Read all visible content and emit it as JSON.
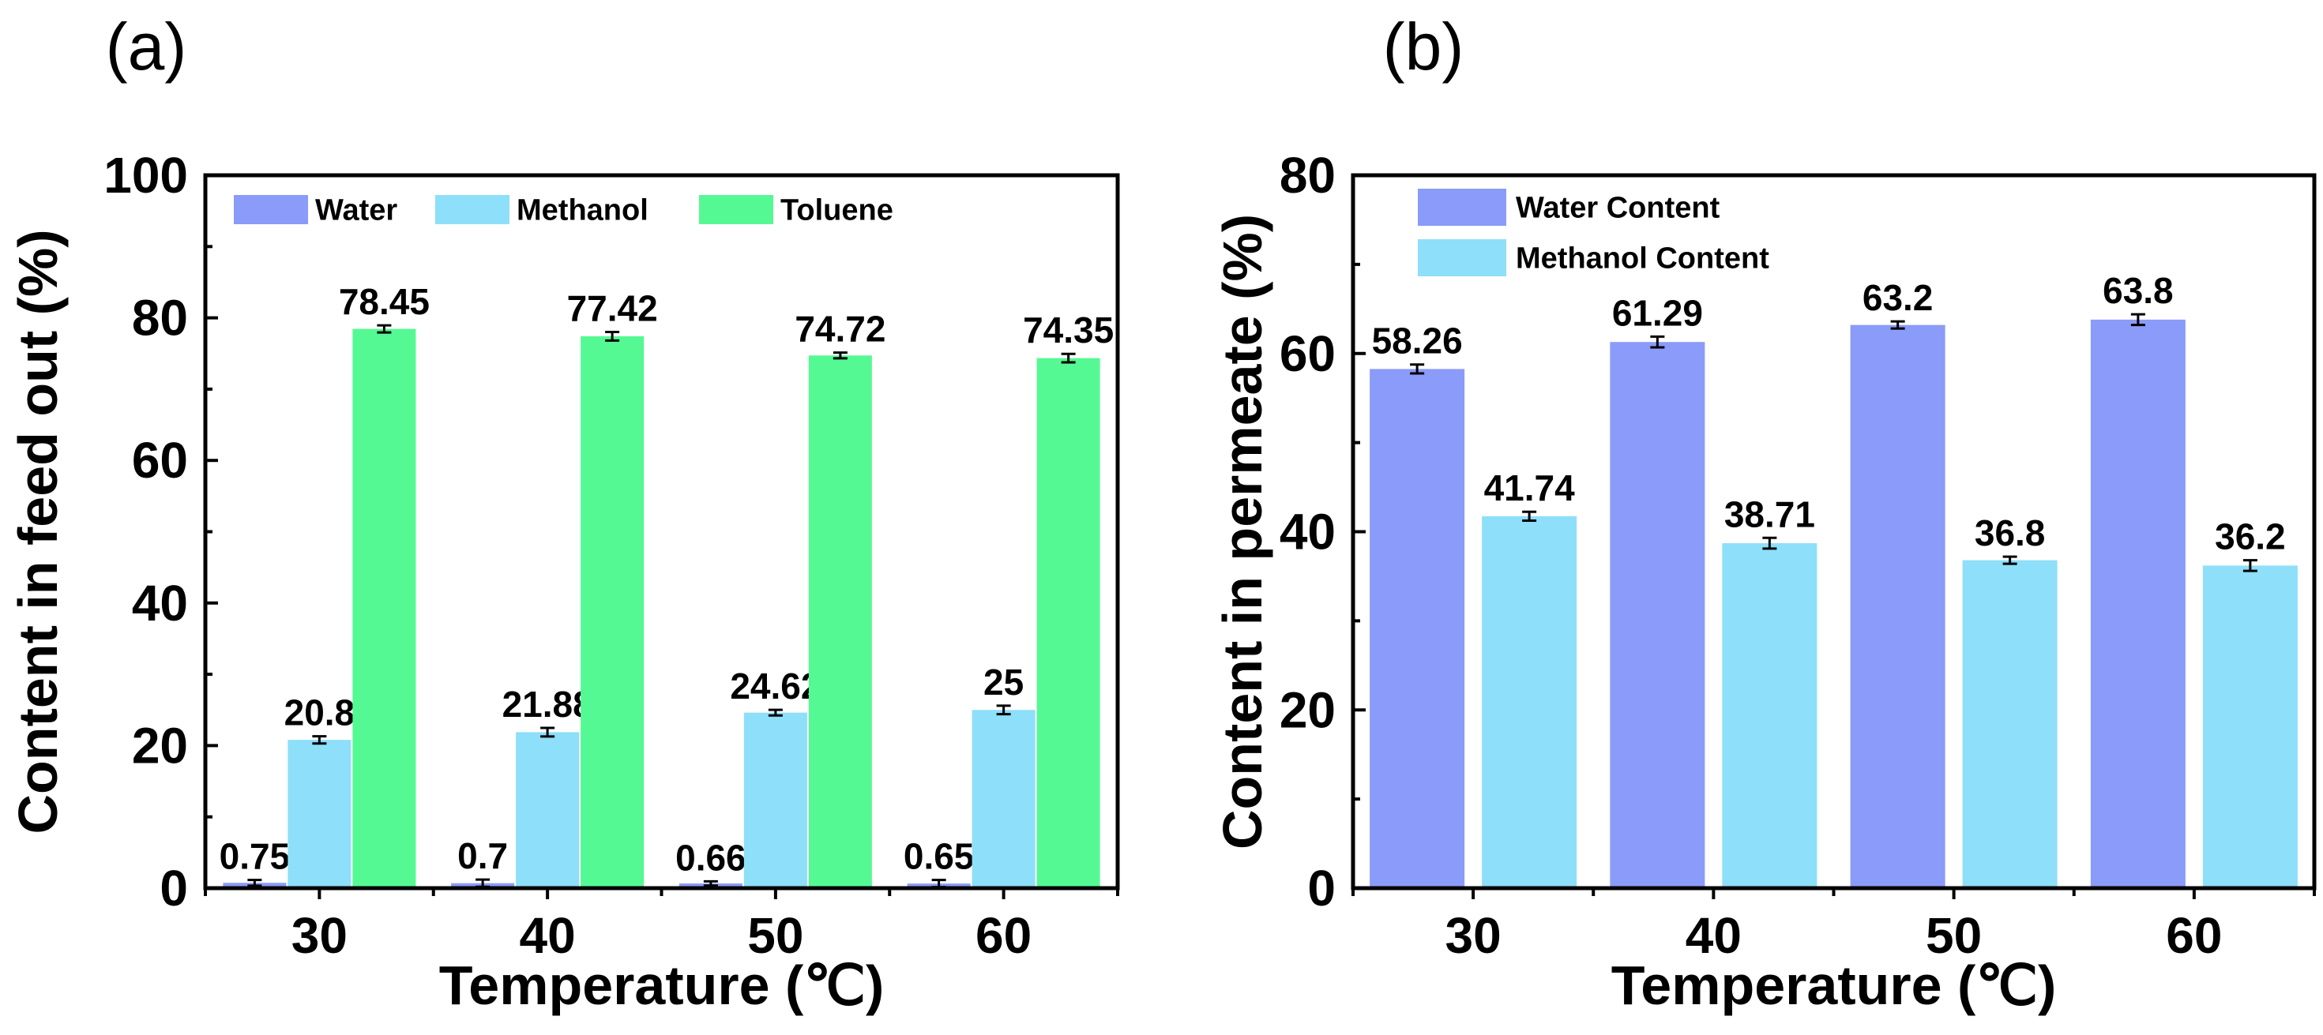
{
  "chart_data": [
    {
      "type": "bar",
      "panel_label": "(a)",
      "title": "",
      "xlabel": "Temperature (℃)",
      "ylabel": "Content in feed out (%)",
      "categories": [
        "30",
        "40",
        "50",
        "60"
      ],
      "ylim": [
        0,
        100
      ],
      "yticks": [
        0,
        20,
        40,
        60,
        80,
        100
      ],
      "legend_position": "top-left",
      "series": [
        {
          "name": "Water",
          "color": "#8b9bf9",
          "values": [
            0.75,
            0.7,
            0.66,
            0.65
          ],
          "errors": [
            0.4,
            0.5,
            0.3,
            0.5
          ],
          "labels": [
            "0.75",
            "0.7",
            "0.66",
            "0.65"
          ]
        },
        {
          "name": "Methanol",
          "color": "#8edff9",
          "values": [
            20.8,
            21.88,
            24.62,
            25
          ],
          "errors": [
            0.5,
            0.6,
            0.4,
            0.6
          ],
          "labels": [
            "20.8",
            "21.88",
            "24.62",
            "25"
          ]
        },
        {
          "name": "Toluene",
          "color": "#55f993",
          "values": [
            78.45,
            77.42,
            74.72,
            74.35
          ],
          "errors": [
            0.5,
            0.6,
            0.4,
            0.6
          ],
          "labels": [
            "78.45",
            "77.42",
            "74.72",
            "74.35"
          ]
        }
      ]
    },
    {
      "type": "bar",
      "panel_label": "(b)",
      "title": "",
      "xlabel": "Temperature (℃)",
      "ylabel": "Content in permeate (%)",
      "categories": [
        "30",
        "40",
        "50",
        "60"
      ],
      "ylim": [
        0,
        80
      ],
      "yticks": [
        0,
        20,
        40,
        60,
        80
      ],
      "legend_position": "top-left",
      "series": [
        {
          "name": "Water Content",
          "color": "#8b9bf9",
          "values": [
            58.26,
            61.29,
            63.2,
            63.8
          ],
          "errors": [
            0.5,
            0.6,
            0.4,
            0.6
          ],
          "labels": [
            "58.26",
            "61.29",
            "63.2",
            "63.8"
          ]
        },
        {
          "name": "Methanol Content",
          "color": "#8edff9",
          "values": [
            41.74,
            38.71,
            36.8,
            36.2
          ],
          "errors": [
            0.5,
            0.6,
            0.4,
            0.6
          ],
          "labels": [
            "41.74",
            "38.71",
            "36.8",
            "36.2"
          ]
        }
      ]
    }
  ]
}
